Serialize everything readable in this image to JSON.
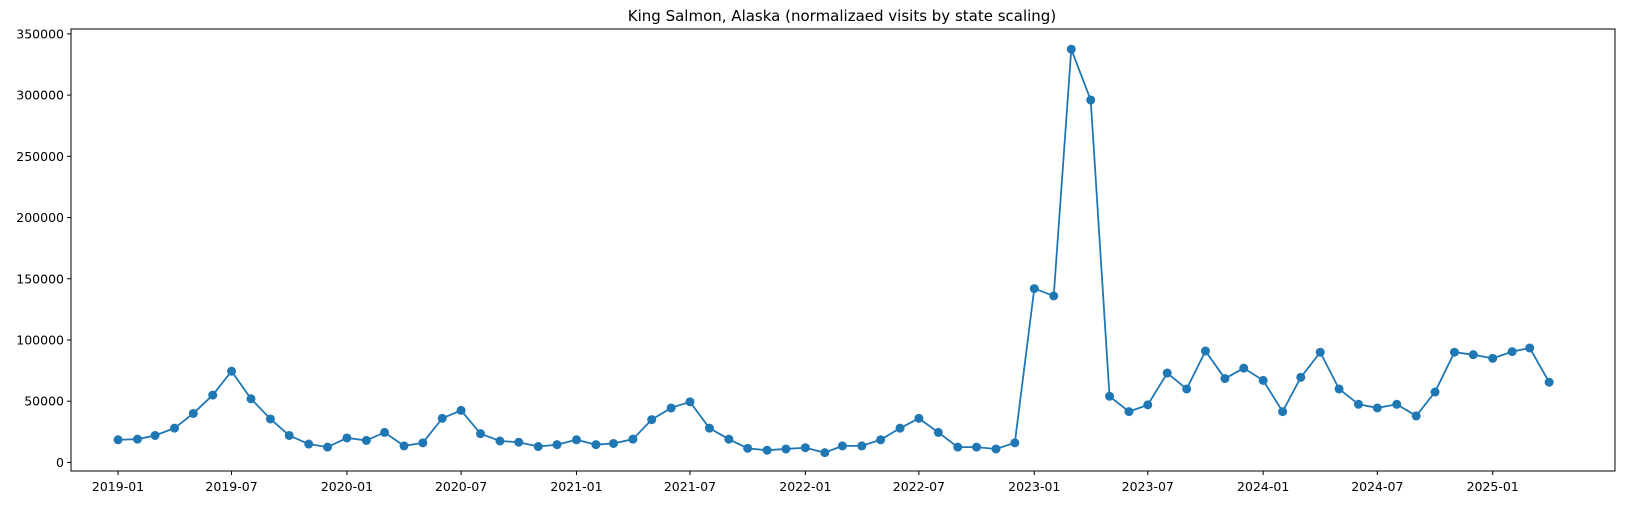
{
  "chart_data": {
    "type": "line",
    "title": "King Salmon, Alaska (normalizaed visits by state scaling)",
    "xlabel": "",
    "ylabel": "",
    "x_ticks": [
      "2019-01",
      "2019-07",
      "2020-01",
      "2020-07",
      "2021-01",
      "2021-07",
      "2022-01",
      "2022-07",
      "2023-01",
      "2023-07",
      "2024-01",
      "2024-07",
      "2025-01"
    ],
    "y_ticks": [
      0,
      50000,
      100000,
      150000,
      200000,
      250000,
      300000,
      350000
    ],
    "xlim": [
      "2018-10-18",
      "2025-07-15"
    ],
    "ylim": [
      -7000,
      354000
    ],
    "grid": false,
    "legend": "none",
    "color": "#1f77b4",
    "marker": "circle",
    "series": [
      {
        "x": [
          "2019-01",
          "2019-02",
          "2019-03",
          "2019-04",
          "2019-05",
          "2019-06",
          "2019-07",
          "2019-08",
          "2019-09",
          "2019-10",
          "2019-11",
          "2019-12",
          "2020-01",
          "2020-02",
          "2020-03",
          "2020-04",
          "2020-05",
          "2020-06",
          "2020-07",
          "2020-08",
          "2020-09",
          "2020-10",
          "2020-11",
          "2020-12",
          "2021-01",
          "2021-02",
          "2021-03",
          "2021-04",
          "2021-05",
          "2021-06",
          "2021-07",
          "2021-08",
          "2021-09",
          "2021-10",
          "2021-11",
          "2021-12",
          "2022-01",
          "2022-02",
          "2022-03",
          "2022-04",
          "2022-05",
          "2022-06",
          "2022-07",
          "2022-08",
          "2022-09",
          "2022-10",
          "2022-11",
          "2022-12",
          "2023-01",
          "2023-02",
          "2023-03",
          "2023-04",
          "2023-05",
          "2023-06",
          "2023-07",
          "2023-08",
          "2023-09",
          "2023-10",
          "2023-11",
          "2023-12",
          "2024-01",
          "2024-02",
          "2024-03",
          "2024-04",
          "2024-05",
          "2024-06",
          "2024-07",
          "2024-08",
          "2024-09",
          "2024-10",
          "2024-11",
          "2024-12",
          "2025-01",
          "2025-02",
          "2025-03",
          "2025-04"
        ],
        "values": [
          18500,
          19000,
          22000,
          28000,
          40000,
          55000,
          74500,
          52000,
          35500,
          22000,
          15000,
          12500,
          20000,
          18000,
          24500,
          13500,
          16000,
          36000,
          42500,
          23500,
          17500,
          16500,
          13000,
          14500,
          18500,
          14500,
          15500,
          19000,
          35000,
          44500,
          49500,
          28000,
          19000,
          11500,
          10000,
          11000,
          12000,
          8000,
          13500,
          13500,
          18500,
          28000,
          36000,
          24500,
          12500,
          12500,
          11000,
          16000,
          142000,
          136000,
          337500,
          296000,
          54000,
          41500,
          47000,
          73000,
          60000,
          91000,
          68500,
          77000,
          67000,
          41500,
          69500,
          90000,
          60000,
          47500,
          44500,
          47500,
          38000,
          57500,
          90000,
          88000,
          85000,
          90500,
          93500,
          65500
        ]
      }
    ]
  }
}
